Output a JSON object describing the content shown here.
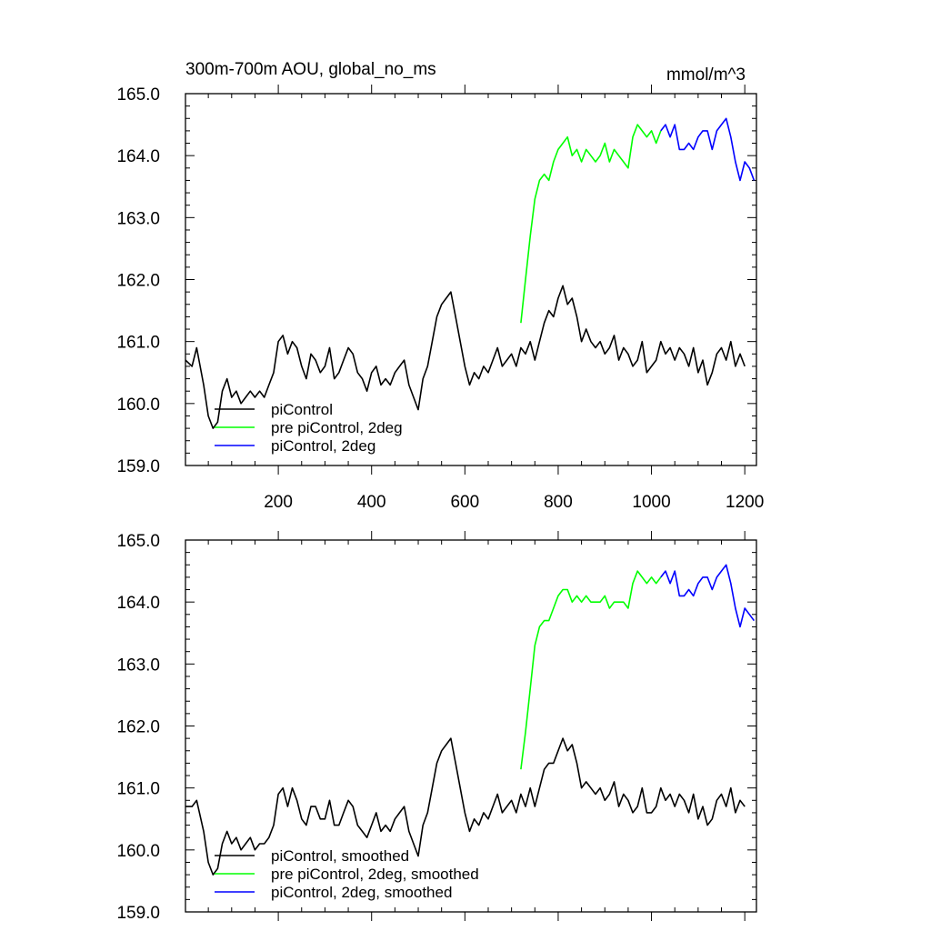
{
  "chart_data": [
    {
      "type": "line",
      "title": "300m-700m AOU, global_no_ms",
      "units": "mmol/m^3",
      "xlim": [
        1,
        1225
      ],
      "ylim": [
        159.0,
        165.0
      ],
      "xticks": [
        200,
        400,
        600,
        800,
        1000,
        1200
      ],
      "xtick_labels": [
        "200",
        "400",
        "600",
        "800",
        "1000",
        "1200"
      ],
      "yticks": [
        159,
        160,
        161,
        162,
        163,
        164,
        165
      ],
      "ytick_labels": [
        "159.0",
        "160.0",
        "161.0",
        "162.0",
        "163.0",
        "164.0",
        "165.0"
      ],
      "legend_position": "bottom-left",
      "series": [
        {
          "name": "piControl",
          "color": "#000000",
          "x": [
            1,
            15,
            25,
            40,
            50,
            60,
            70,
            80,
            90,
            100,
            110,
            120,
            130,
            140,
            150,
            160,
            170,
            180,
            190,
            200,
            210,
            220,
            230,
            240,
            250,
            260,
            270,
            280,
            290,
            300,
            310,
            320,
            330,
            340,
            350,
            360,
            370,
            380,
            390,
            400,
            410,
            420,
            430,
            440,
            450,
            460,
            470,
            480,
            490,
            500,
            510,
            520,
            530,
            540,
            550,
            560,
            570,
            580,
            590,
            600,
            610,
            620,
            630,
            640,
            650,
            660,
            670,
            680,
            690,
            700,
            710,
            720,
            730,
            740,
            750,
            760,
            770,
            780,
            790,
            800,
            810,
            820,
            830,
            840,
            850,
            860,
            870,
            880,
            890,
            900,
            910,
            920,
            930,
            940,
            950,
            960,
            970,
            980,
            990,
            1000,
            1010,
            1020,
            1030,
            1040,
            1050,
            1060,
            1070,
            1080,
            1090,
            1100,
            1110,
            1120,
            1130,
            1140,
            1150,
            1160,
            1170,
            1180,
            1190,
            1200
          ],
          "y": [
            160.7,
            160.6,
            160.9,
            160.3,
            159.8,
            159.6,
            159.7,
            160.2,
            160.4,
            160.1,
            160.2,
            160.0,
            160.1,
            160.2,
            160.1,
            160.2,
            160.1,
            160.3,
            160.5,
            161.0,
            161.1,
            160.8,
            161.0,
            160.9,
            160.6,
            160.4,
            160.8,
            160.7,
            160.5,
            160.6,
            160.9,
            160.4,
            160.5,
            160.7,
            160.9,
            160.8,
            160.5,
            160.4,
            160.2,
            160.5,
            160.6,
            160.3,
            160.4,
            160.3,
            160.5,
            160.6,
            160.7,
            160.3,
            160.1,
            159.9,
            160.4,
            160.6,
            161.0,
            161.4,
            161.6,
            161.7,
            161.8,
            161.4,
            161.0,
            160.6,
            160.3,
            160.5,
            160.4,
            160.6,
            160.5,
            160.7,
            160.9,
            160.6,
            160.7,
            160.8,
            160.6,
            160.9,
            160.8,
            161.0,
            160.7,
            161.0,
            161.3,
            161.5,
            161.4,
            161.7,
            161.9,
            161.6,
            161.7,
            161.4,
            161.0,
            161.2,
            161.0,
            160.9,
            161.0,
            160.8,
            160.9,
            161.1,
            160.7,
            160.9,
            160.8,
            160.6,
            160.7,
            161.0,
            160.5,
            160.6,
            160.7,
            161.0,
            160.8,
            160.9,
            160.7,
            160.9,
            160.8,
            160.6,
            160.9,
            160.5,
            160.7,
            160.3,
            160.5,
            160.8,
            160.9,
            160.7,
            161.0,
            160.6,
            160.8,
            160.6
          ]
        },
        {
          "name": "pre piControl, 2deg",
          "color": "#00ff00",
          "x": [
            720,
            730,
            740,
            750,
            760,
            770,
            780,
            790,
            800,
            810,
            820,
            830,
            840,
            850,
            860,
            870,
            880,
            890,
            900,
            910,
            920,
            930,
            940,
            950,
            960,
            970,
            980,
            990,
            1000,
            1010,
            1020
          ],
          "y": [
            161.3,
            162.0,
            162.7,
            163.3,
            163.6,
            163.7,
            163.6,
            163.9,
            164.1,
            164.2,
            164.3,
            164.0,
            164.1,
            163.9,
            164.1,
            164.0,
            163.9,
            164.0,
            164.2,
            163.9,
            164.1,
            164.0,
            163.9,
            163.8,
            164.3,
            164.5,
            164.4,
            164.3,
            164.4,
            164.2,
            164.4
          ]
        },
        {
          "name": "piControl, 2deg",
          "color": "#0000ff",
          "x": [
            1020,
            1030,
            1040,
            1050,
            1060,
            1070,
            1080,
            1090,
            1100,
            1110,
            1120,
            1130,
            1140,
            1150,
            1160,
            1170,
            1180,
            1190,
            1200,
            1210,
            1220
          ],
          "y": [
            164.4,
            164.5,
            164.3,
            164.5,
            164.1,
            164.1,
            164.2,
            164.1,
            164.3,
            164.4,
            164.4,
            164.1,
            164.4,
            164.5,
            164.6,
            164.3,
            163.9,
            163.6,
            163.9,
            163.8,
            163.6
          ]
        }
      ]
    },
    {
      "type": "line",
      "xlim": [
        1,
        1225
      ],
      "ylim": [
        159.0,
        165.0
      ],
      "xticks": [
        200,
        400,
        600,
        800,
        1000,
        1200
      ],
      "yticks": [
        159,
        160,
        161,
        162,
        163,
        164,
        165
      ],
      "ytick_labels": [
        "159.0",
        "160.0",
        "161.0",
        "162.0",
        "163.0",
        "164.0",
        "165.0"
      ],
      "legend_position": "bottom-left",
      "series": [
        {
          "name": "piControl, smoothed",
          "color": "#000000",
          "x": [
            1,
            15,
            25,
            40,
            50,
            60,
            70,
            80,
            90,
            100,
            110,
            120,
            130,
            140,
            150,
            160,
            170,
            180,
            190,
            200,
            210,
            220,
            230,
            240,
            250,
            260,
            270,
            280,
            290,
            300,
            310,
            320,
            330,
            340,
            350,
            360,
            370,
            380,
            390,
            400,
            410,
            420,
            430,
            440,
            450,
            460,
            470,
            480,
            490,
            500,
            510,
            520,
            530,
            540,
            550,
            560,
            570,
            580,
            590,
            600,
            610,
            620,
            630,
            640,
            650,
            660,
            670,
            680,
            690,
            700,
            710,
            720,
            730,
            740,
            750,
            760,
            770,
            780,
            790,
            800,
            810,
            820,
            830,
            840,
            850,
            860,
            870,
            880,
            890,
            900,
            910,
            920,
            930,
            940,
            950,
            960,
            970,
            980,
            990,
            1000,
            1010,
            1020,
            1030,
            1040,
            1050,
            1060,
            1070,
            1080,
            1090,
            1100,
            1110,
            1120,
            1130,
            1140,
            1150,
            1160,
            1170,
            1180,
            1190,
            1200
          ],
          "y": [
            160.7,
            160.7,
            160.8,
            160.3,
            159.8,
            159.6,
            159.7,
            160.1,
            160.3,
            160.1,
            160.2,
            160.0,
            160.1,
            160.2,
            160.0,
            160.1,
            160.1,
            160.2,
            160.4,
            160.9,
            161.0,
            160.7,
            161.0,
            160.8,
            160.5,
            160.4,
            160.7,
            160.7,
            160.5,
            160.5,
            160.8,
            160.4,
            160.4,
            160.6,
            160.8,
            160.7,
            160.4,
            160.3,
            160.2,
            160.4,
            160.6,
            160.3,
            160.4,
            160.3,
            160.5,
            160.6,
            160.7,
            160.3,
            160.1,
            159.9,
            160.4,
            160.6,
            161.0,
            161.4,
            161.6,
            161.7,
            161.8,
            161.4,
            161.0,
            160.6,
            160.3,
            160.5,
            160.4,
            160.6,
            160.5,
            160.7,
            160.9,
            160.6,
            160.7,
            160.8,
            160.6,
            160.9,
            160.7,
            161.0,
            160.7,
            161.0,
            161.3,
            161.4,
            161.4,
            161.6,
            161.8,
            161.6,
            161.7,
            161.4,
            161.0,
            161.1,
            161.0,
            160.9,
            161.0,
            160.8,
            160.9,
            161.1,
            160.7,
            160.9,
            160.8,
            160.6,
            160.7,
            161.0,
            160.6,
            160.6,
            160.7,
            161.0,
            160.8,
            160.9,
            160.7,
            160.9,
            160.8,
            160.6,
            160.9,
            160.5,
            160.7,
            160.4,
            160.5,
            160.8,
            160.9,
            160.7,
            161.0,
            160.6,
            160.8,
            160.7
          ]
        },
        {
          "name": "pre piControl, 2deg, smoothed",
          "color": "#00ff00",
          "x": [
            720,
            730,
            740,
            750,
            760,
            770,
            780,
            790,
            800,
            810,
            820,
            830,
            840,
            850,
            860,
            870,
            880,
            890,
            900,
            910,
            920,
            930,
            940,
            950,
            960,
            970,
            980,
            990,
            1000,
            1010,
            1020
          ],
          "y": [
            161.3,
            161.9,
            162.6,
            163.3,
            163.6,
            163.7,
            163.7,
            163.9,
            164.1,
            164.2,
            164.2,
            164.0,
            164.1,
            164.0,
            164.1,
            164.0,
            164.0,
            164.0,
            164.1,
            163.9,
            164.0,
            164.0,
            164.0,
            163.9,
            164.3,
            164.5,
            164.4,
            164.3,
            164.4,
            164.3,
            164.4
          ]
        },
        {
          "name": "piControl, 2deg, smoothed",
          "color": "#0000ff",
          "x": [
            1020,
            1030,
            1040,
            1050,
            1060,
            1070,
            1080,
            1090,
            1100,
            1110,
            1120,
            1130,
            1140,
            1150,
            1160,
            1170,
            1180,
            1190,
            1200,
            1210,
            1220
          ],
          "y": [
            164.4,
            164.5,
            164.3,
            164.5,
            164.1,
            164.1,
            164.2,
            164.1,
            164.3,
            164.4,
            164.4,
            164.2,
            164.4,
            164.5,
            164.6,
            164.3,
            163.9,
            163.6,
            163.9,
            163.8,
            163.7
          ]
        }
      ]
    }
  ]
}
